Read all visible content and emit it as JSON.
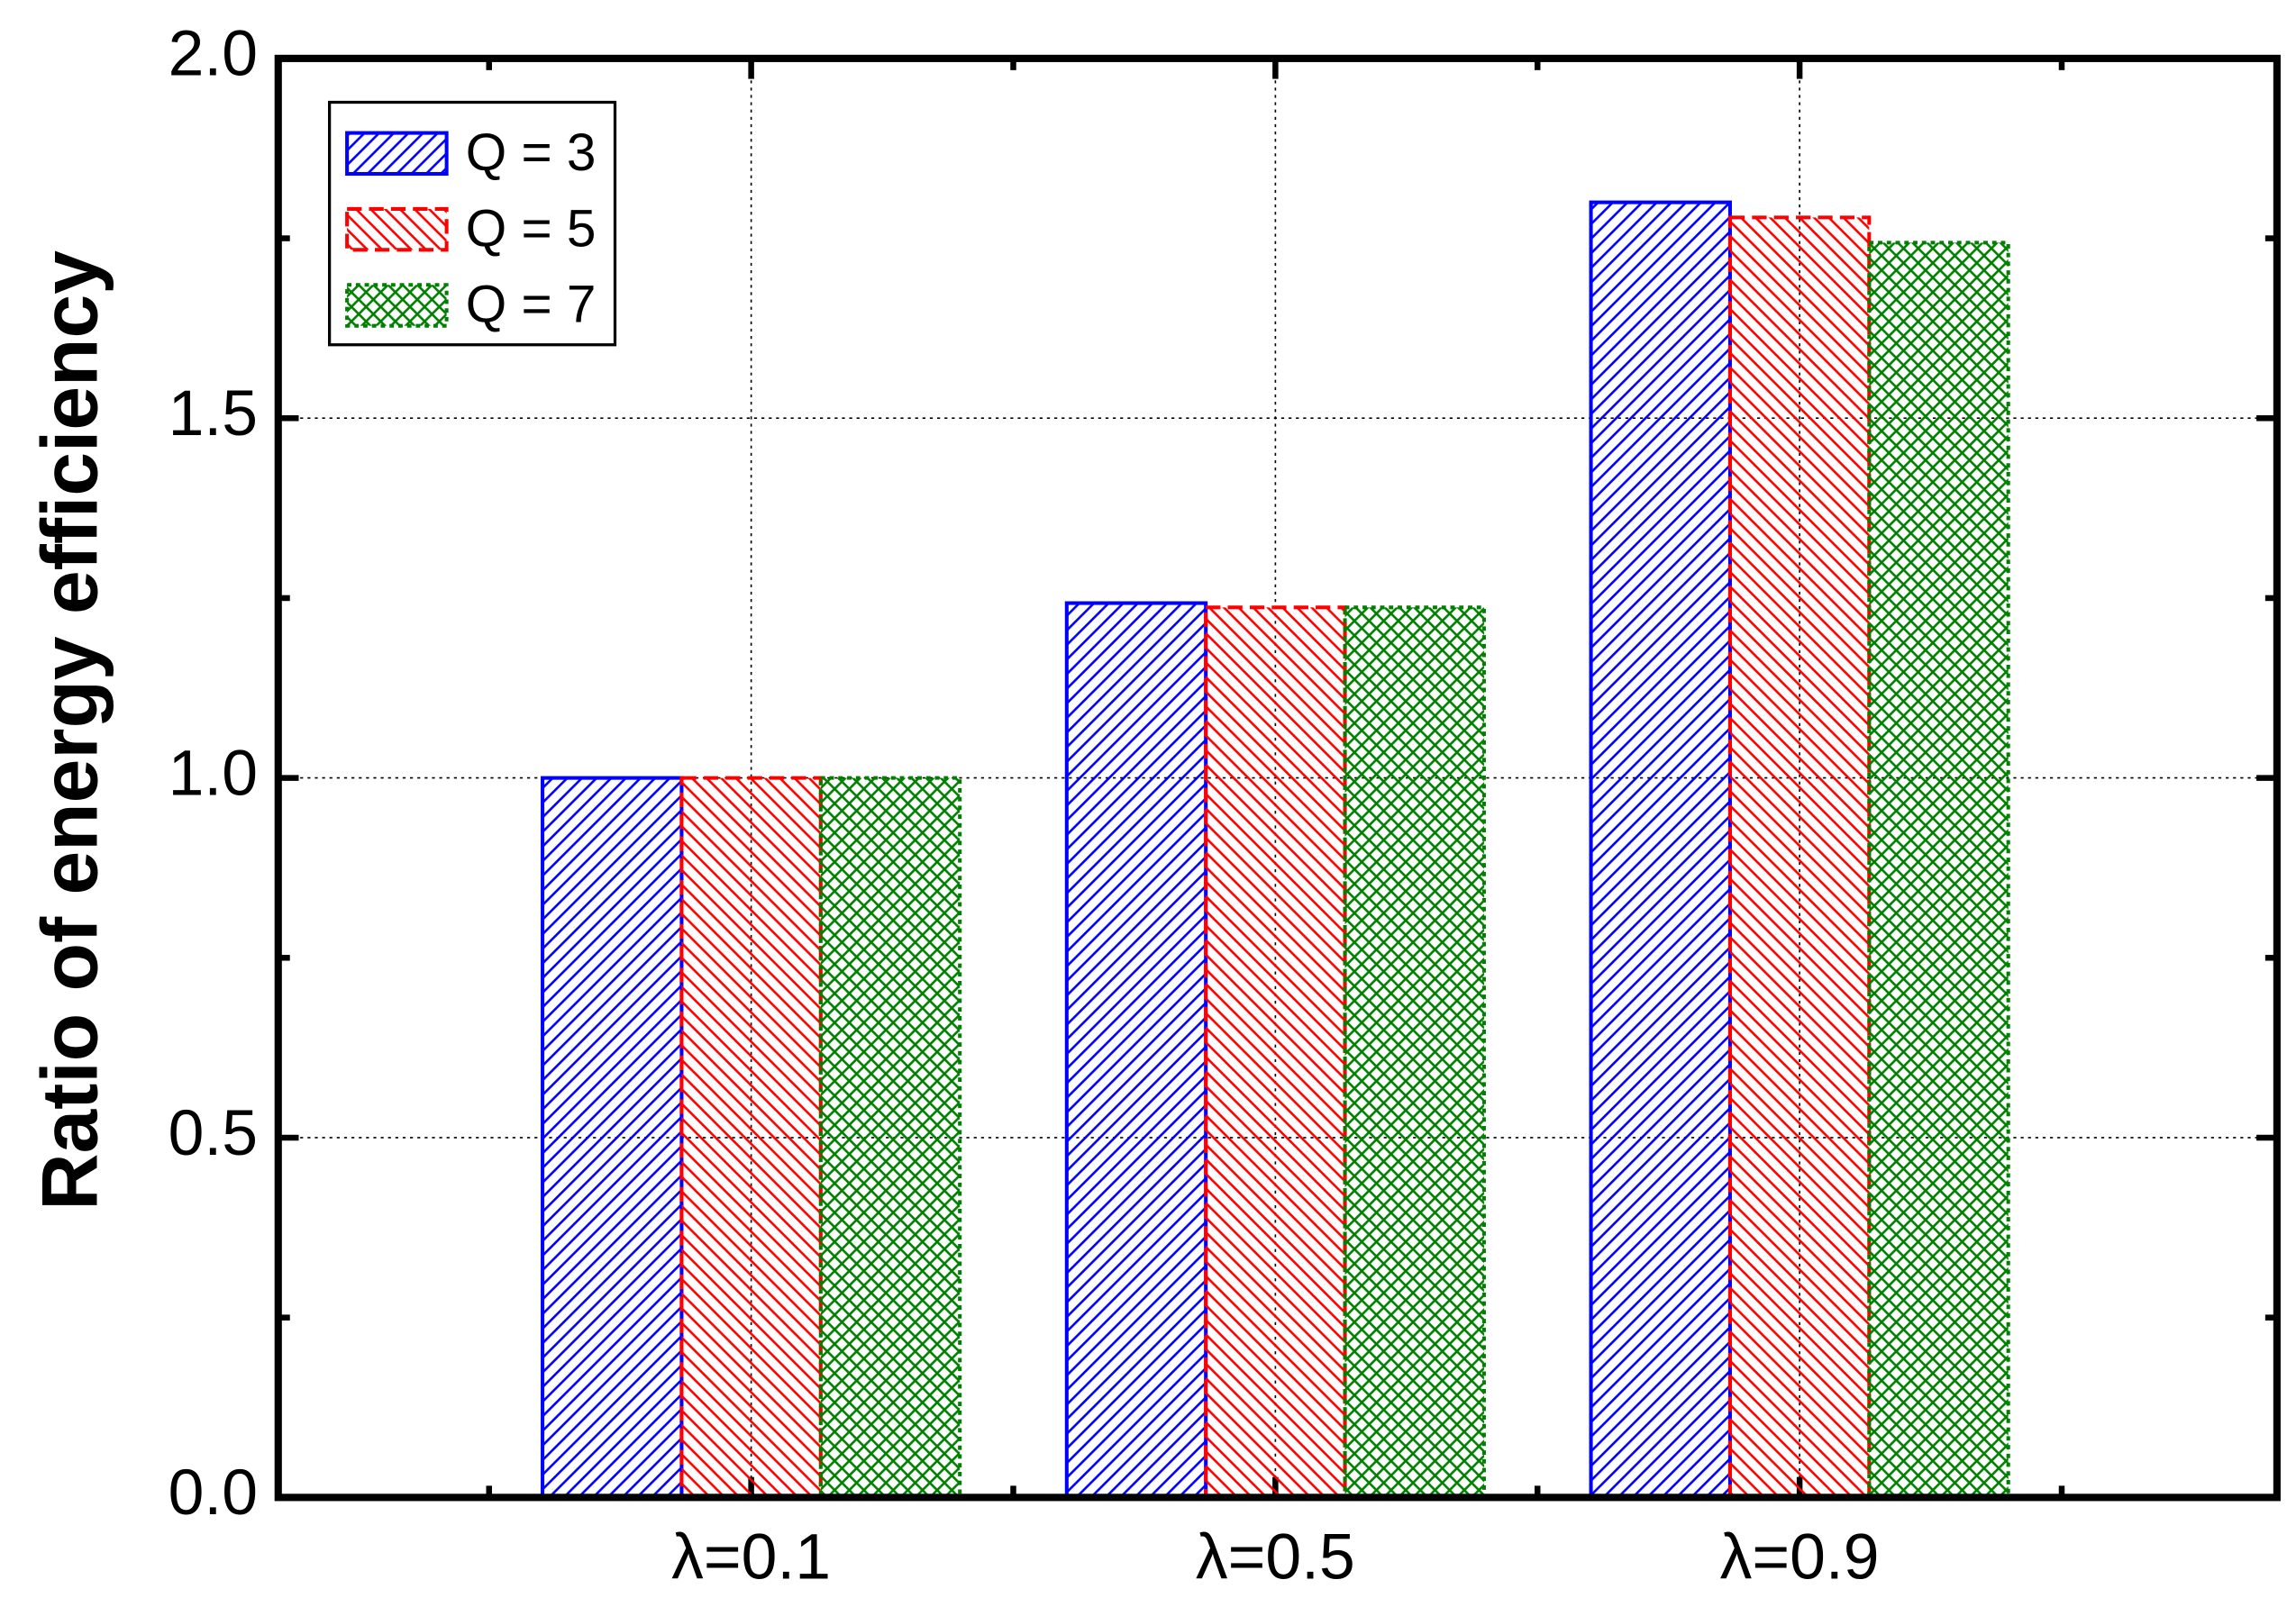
{
  "chart_data": {
    "type": "bar",
    "y_label": "Ratio of energy efficiency",
    "categories": [
      "λ=0.1",
      "λ=0.5",
      "λ=0.9"
    ],
    "series": [
      {
        "name": "Q = 3",
        "color": "#0000ff",
        "hatch": "forward",
        "line_style": "solid",
        "values": [
          1.0,
          1.243,
          1.8
        ]
      },
      {
        "name": "Q = 5",
        "color": "#ff0000",
        "hatch": "backward",
        "line_style": "dashed",
        "values": [
          1.0,
          1.237,
          1.779
        ]
      },
      {
        "name": "Q = 7",
        "color": "#007f00",
        "hatch": "cross",
        "line_style": "dotted",
        "values": [
          1.0,
          1.237,
          1.744
        ]
      }
    ],
    "ylim": [
      0,
      2
    ],
    "yticks": [
      {
        "value": 0,
        "label": "0.0"
      },
      0.5,
      {
        "value": 1,
        "label": "1.0"
      },
      1.5,
      {
        "value": 2,
        "label": "2.0"
      }
    ],
    "grid": true,
    "legend": "upper left"
  }
}
